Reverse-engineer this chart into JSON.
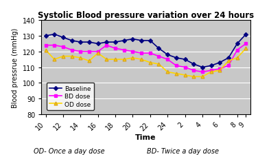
{
  "title": "Systolic Blood pressure variation over 24 hours",
  "xlabel": "Time",
  "ylabel": "Blood pressrue (mmHg)",
  "x_tick_labels": [
    "10",
    "12",
    "14",
    "16",
    "18",
    "20",
    "22",
    "24",
    "2",
    "4",
    "6",
    "8",
    "9"
  ],
  "x_tick_pos": [
    0,
    2,
    4,
    6,
    8,
    10,
    12,
    14,
    16,
    18,
    20,
    22,
    23
  ],
  "ylim": [
    80,
    140
  ],
  "yticks": [
    80,
    90,
    100,
    110,
    120,
    130,
    140
  ],
  "plot_bg_color": "#c8c8c8",
  "fig_bg_color": "#ffffff",
  "baseline_color": "#000080",
  "bd_color": "#FF00FF",
  "od_color": "#FFD700",
  "legend_labels": [
    "Baseline",
    "BD dose",
    "OD dose"
  ],
  "footer_left": "OD- Once a day dose",
  "footer_right": "BD- Twice a day dose",
  "baseline_x": [
    0,
    1,
    2,
    3,
    4,
    5,
    6,
    7,
    8,
    9,
    10,
    11,
    12,
    13,
    14,
    15,
    16,
    17,
    18,
    19,
    20,
    21,
    22,
    23
  ],
  "baseline_y": [
    130,
    131,
    129,
    127,
    126,
    126,
    125,
    126,
    126,
    127,
    128,
    127,
    127,
    122,
    118,
    116,
    115,
    112,
    110,
    111,
    113,
    116,
    125,
    131
  ],
  "bd_x": [
    0,
    1,
    2,
    3,
    4,
    5,
    6,
    7,
    8,
    9,
    10,
    11,
    12,
    13,
    14,
    15,
    16,
    17,
    18,
    19,
    20,
    21,
    22,
    23
  ],
  "bd_y": [
    124,
    124,
    123,
    121,
    120,
    120,
    120,
    124,
    122,
    121,
    120,
    119,
    119,
    117,
    115,
    111,
    110,
    108,
    107,
    108,
    109,
    111,
    121,
    125
  ],
  "od_x": [
    0,
    1,
    2,
    3,
    4,
    5,
    6,
    7,
    8,
    9,
    10,
    11,
    12,
    13,
    14,
    15,
    16,
    17,
    18,
    19,
    20,
    21,
    22,
    23
  ],
  "od_y": [
    121,
    115,
    117,
    117,
    116,
    114,
    119,
    115,
    115,
    115,
    116,
    115,
    113,
    112,
    107,
    106,
    105,
    104,
    104,
    107,
    108,
    114,
    116,
    122
  ]
}
